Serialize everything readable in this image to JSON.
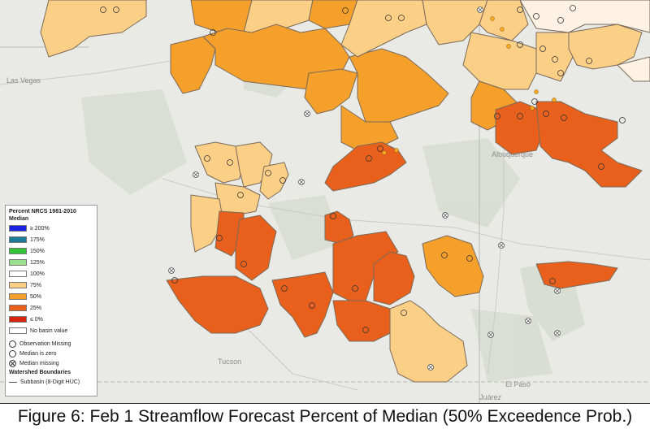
{
  "colors": {
    "background": "#e9eae5",
    "p200": "#1a22e6",
    "p175": "#1f7a99",
    "p150": "#35c33b",
    "p125": "#9be08f",
    "p100": "#ffffff",
    "p75": "#fbcf86",
    "p50": "#f5a02b",
    "p25": "#e8601b",
    "p0": "#d8240f",
    "nobasin": "#ffffff"
  },
  "map": {
    "cities": [
      "Las Vegas",
      "Albuquerque",
      "Tucson",
      "El Paso",
      "Juárez"
    ]
  },
  "legend": {
    "title_line1": "Percent NRCS 1981-2010",
    "title_line2": "Median",
    "items": [
      {
        "label": "≥ 200%",
        "color_key": "p200"
      },
      {
        "label": "175%",
        "color_key": "p175"
      },
      {
        "label": "150%",
        "color_key": "p150"
      },
      {
        "label": "125%",
        "color_key": "p125"
      },
      {
        "label": "100%",
        "color_key": "p100"
      },
      {
        "label": "75%",
        "color_key": "p75"
      },
      {
        "label": "50%",
        "color_key": "p50"
      },
      {
        "label": "25%",
        "color_key": "p25"
      },
      {
        "label": "≤ 0%",
        "color_key": "p0"
      },
      {
        "label": "No basin value",
        "color_key": "nobasin"
      }
    ],
    "symbols": [
      {
        "label": "Observation Missing",
        "icon": "open-circle-icon"
      },
      {
        "label": "Median is zero",
        "icon": "open-circle-icon"
      },
      {
        "label": "Median missing",
        "icon": "crossed-circle-icon"
      }
    ],
    "boundaries_title": "Watershed Boundaries",
    "boundaries_item": "Subbasin (8-Digit HUC)"
  },
  "caption": "Figure 6: Feb 1 Streamflow Forecast Percent of Median (50% Exceedence Prob.)"
}
